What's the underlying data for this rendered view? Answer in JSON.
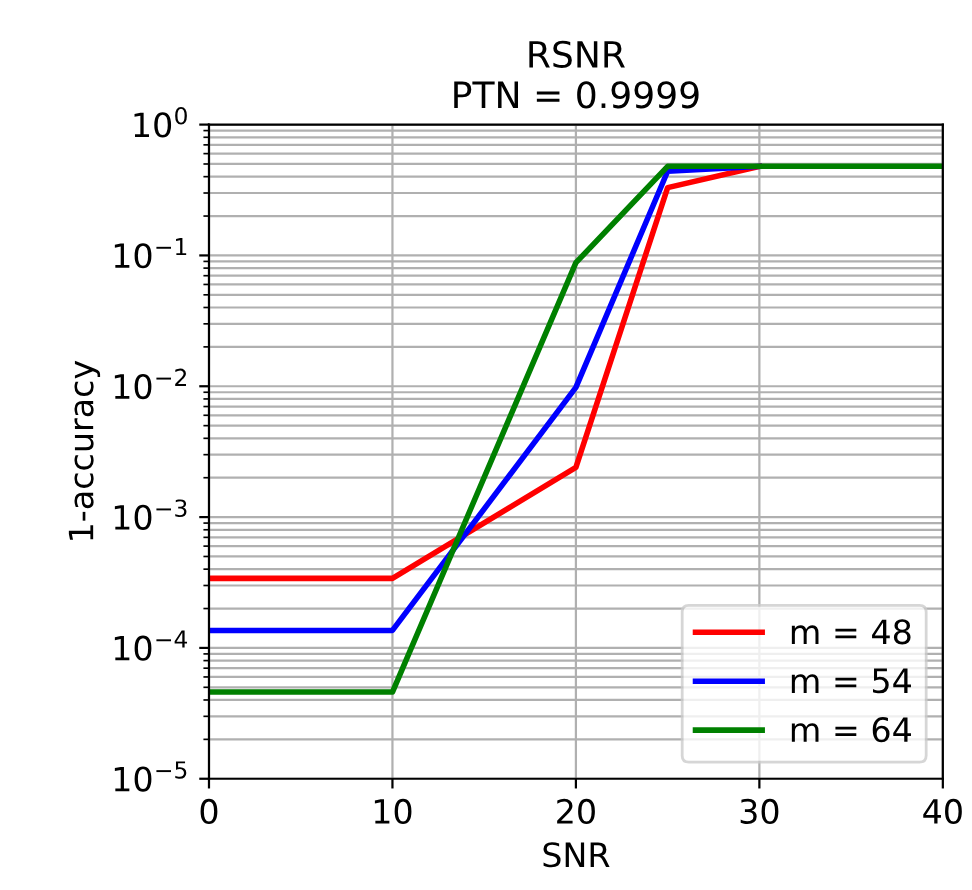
{
  "chart_data": {
    "type": "line",
    "title": "RSNR\nPTN = 0.9999",
    "xlabel": "SNR",
    "ylabel": "1-accuracy",
    "x": [
      0,
      10,
      20,
      25,
      30,
      40
    ],
    "series": [
      {
        "name": "m = 48",
        "color": "#ff0000",
        "values": [
          0.00034,
          0.00034,
          0.0024,
          0.33,
          0.48,
          null
        ]
      },
      {
        "name": "m = 54",
        "color": "#0000ff",
        "values": [
          0.000136,
          0.000136,
          0.0098,
          0.44,
          0.48,
          null
        ]
      },
      {
        "name": "m = 64",
        "color": "#008000",
        "values": [
          4.6e-05,
          4.6e-05,
          0.088,
          0.48,
          0.48,
          0.48
        ]
      }
    ],
    "log": "y",
    "xlim": [
      0,
      40
    ],
    "xticks": [
      0,
      10,
      20,
      30,
      40
    ],
    "ylim": [
      1e-05,
      1
    ],
    "yticks": [
      {
        "value": 1e-05,
        "label": "10$^{−5}$"
      },
      {
        "value": 0.0001,
        "label": "10$^{−4}$"
      },
      {
        "value": 0.001,
        "label": "10$^{−3}$"
      },
      {
        "value": 0.01,
        "label": "10$^{−2}$"
      },
      {
        "value": 0.1,
        "label": "10$^{−1}$"
      },
      {
        "value": 1,
        "label": "10$^{0}$"
      }
    ],
    "grid": true,
    "legend": "bottom right"
  }
}
